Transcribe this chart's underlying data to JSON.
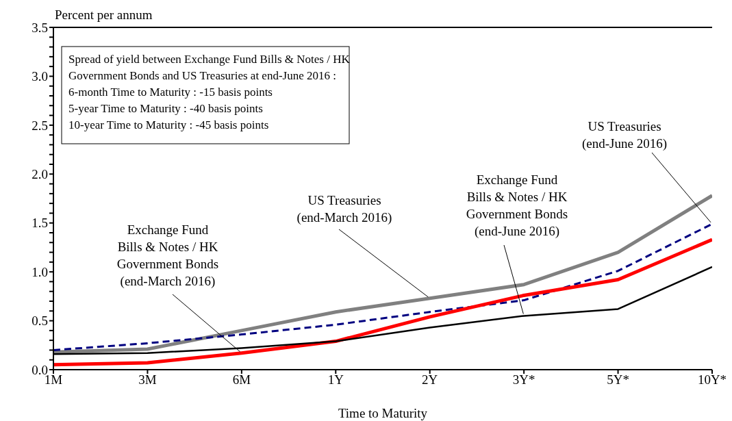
{
  "chart_data": {
    "type": "line",
    "ylabel": "Percent per annum",
    "xlabel": "Time to Maturity",
    "categories": [
      "1M",
      "3M",
      "6M",
      "1Y",
      "2Y",
      "3Y*",
      "5Y*",
      "10Y*"
    ],
    "series": [
      {
        "color": "#808080",
        "values": [
          0.18,
          0.21,
          0.4,
          0.59,
          0.73,
          0.87,
          1.2,
          1.78
        ]
      },
      {
        "color": "#000080",
        "line_style": "dashed",
        "values": [
          0.2,
          0.27,
          0.36,
          0.46,
          0.59,
          0.71,
          1.01,
          1.49
        ]
      },
      {
        "color": "#ff0000",
        "values": [
          0.05,
          0.07,
          0.17,
          0.29,
          0.54,
          0.76,
          0.92,
          1.33
        ]
      },
      {
        "color": "#000000",
        "values": [
          0.16,
          0.17,
          0.22,
          0.29,
          0.43,
          0.55,
          0.62,
          1.05
        ]
      }
    ],
    "ylim": [
      0,
      3.5
    ],
    "yticks": [
      {
        "value": 0,
        "label": "0.0"
      },
      {
        "value": 0.1,
        "label": null
      },
      {
        "value": 0.2,
        "label": null
      },
      {
        "value": 0.3,
        "label": null
      },
      {
        "value": 0.4,
        "label": null
      },
      {
        "value": 0.5,
        "label": "0.5"
      },
      {
        "value": 0.6,
        "label": null
      },
      {
        "value": 0.7,
        "label": null
      },
      {
        "value": 0.8,
        "label": null
      },
      {
        "value": 0.9,
        "label": null
      },
      {
        "value": 1,
        "label": "1.0"
      },
      {
        "value": 1.1,
        "label": null
      },
      {
        "value": 1.2,
        "label": null
      },
      {
        "value": 1.3,
        "label": null
      },
      {
        "value": 1.4,
        "label": null
      },
      {
        "value": 1.5,
        "label": "1.5"
      },
      {
        "value": 1.6,
        "label": null
      },
      {
        "value": 1.7,
        "label": null
      },
      {
        "value": 1.8,
        "label": null
      },
      {
        "value": 1.9,
        "label": null
      },
      {
        "value": 2,
        "label": "2.0"
      },
      {
        "value": 2.1,
        "label": null
      },
      {
        "value": 2.2,
        "label": null
      },
      {
        "value": 2.3,
        "label": null
      },
      {
        "value": 2.4,
        "label": null
      },
      {
        "value": 2.5,
        "label": "2.5"
      },
      {
        "value": 2.6,
        "label": null
      },
      {
        "value": 2.7,
        "label": null
      },
      {
        "value": 2.8,
        "label": null
      },
      {
        "value": 2.9,
        "label": null
      },
      {
        "value": 3,
        "label": "3.0"
      },
      {
        "value": 3.1,
        "label": null
      },
      {
        "value": 3.2,
        "label": null
      },
      {
        "value": 3.3,
        "label": null
      },
      {
        "value": 3.4,
        "label": null
      },
      {
        "value": 3.5,
        "label": "3.5"
      }
    ],
    "annotations": [
      "Spread of yield between Exchange Fund Bills & Notes / HK\nGovernment Bonds and US Treasuries at end-June 2016 :\n6-month Time to Maturity : -15 basis points\n5-year Time to Maturity : -40 basis points\n10-year Time to Maturity : -45 basis points",
      {
        "text": "US Treasuries\n(end-March 2016)",
        "x": "2Y",
        "y": 0.73
      },
      {
        "text": "US Treasuries\n(end-June 2016)",
        "x": "10Y*",
        "y": 1.49
      },
      {
        "text": "Exchange Fund\nBills & Notes / HK\nGovernment Bonds\n(end-March 2016)",
        "x": "6M",
        "y": 0.17
      },
      {
        "text": "Exchange Fund\nBills & Notes / HK\nGovernment Bonds\n(end-June 2016)",
        "x": "3Y*",
        "y": 0.55
      }
    ],
    "grid": false,
    "legend": false,
    "marker": "none"
  }
}
